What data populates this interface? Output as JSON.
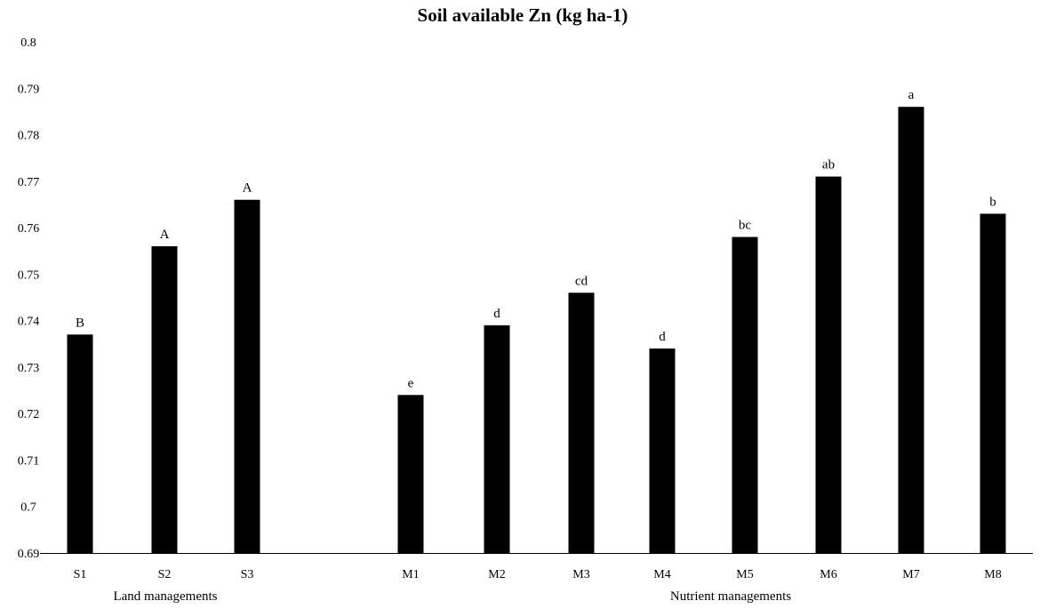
{
  "chart_data": {
    "type": "bar",
    "title": "Soil available Zn (kg ha-1)",
    "xlabel": "",
    "ylabel": "",
    "ylim": [
      0.69,
      0.8
    ],
    "yticks": [
      "0.69",
      "0.7",
      "0.71",
      "0.72",
      "0.73",
      "0.74",
      "0.75",
      "0.76",
      "0.77",
      "0.78",
      "0.79",
      "0.8"
    ],
    "grid": false,
    "legend": "none",
    "bar_color": "#000000",
    "categories": [
      "S1",
      "S2",
      "S3",
      "M1",
      "M2",
      "M3",
      "M4",
      "M5",
      "M6",
      "M7",
      "M8"
    ],
    "values": [
      0.737,
      0.756,
      0.766,
      0.724,
      0.739,
      0.746,
      0.734,
      0.758,
      0.771,
      0.786,
      0.763
    ],
    "letters": [
      "B",
      "A",
      "A",
      "e",
      "d",
      "cd",
      "d",
      "bc",
      "ab",
      "a",
      "b"
    ],
    "groups": [
      {
        "label": "Land managements",
        "categories": [
          "S1",
          "S2",
          "S3"
        ]
      },
      {
        "label": "Nutrient managements",
        "categories": [
          "M1",
          "M2",
          "M3",
          "M4",
          "M5",
          "M6",
          "M7",
          "M8"
        ]
      }
    ]
  }
}
